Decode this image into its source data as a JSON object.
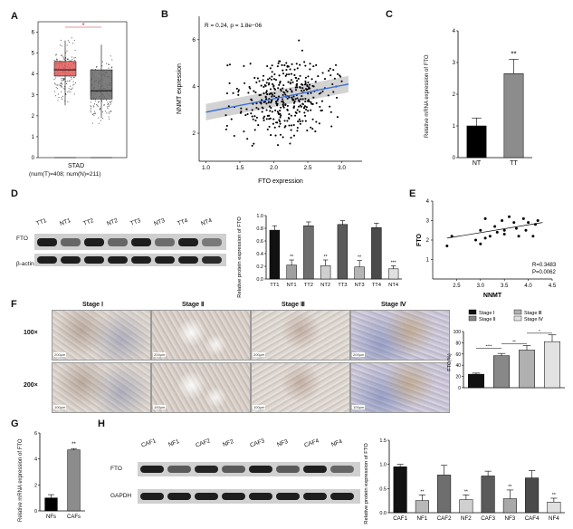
{
  "panels": {
    "A": {
      "letter": "A",
      "xlabel": "STAD",
      "sublabel": "(num(T)=408; num(N)=211)",
      "star": "*",
      "yticks": [
        "0",
        "1",
        "2",
        "3",
        "4",
        "5",
        "6"
      ]
    },
    "B": {
      "letter": "B",
      "stat": "R = 0.24, p = 1.8e−06",
      "xlabel": "FTO expression",
      "ylabel": "NNMT expression",
      "xticks": [
        "1.0",
        "1.5",
        "2.0",
        "2.5",
        "3.0"
      ],
      "yticks": [
        "2",
        "4",
        "6"
      ]
    },
    "C": {
      "letter": "C",
      "ylabel": "Relative mRNA  expression of FTO",
      "sig": "**",
      "categories": [
        "NT",
        "TT"
      ],
      "yticks": [
        "0",
        "1",
        "2",
        "3",
        "4"
      ]
    },
    "D": {
      "letter": "D",
      "lanes": [
        "TT1",
        "NT1",
        "TT2",
        "NT2",
        "TT3",
        "NT3",
        "TT4",
        "NT4"
      ],
      "row_labels": [
        "FTO",
        "β-actin"
      ],
      "ylabel": "Relative protein expression of FTO",
      "yticks": [
        "0.0",
        "0.2",
        "0.4",
        "0.6",
        "0.8",
        "1.0"
      ],
      "sig": [
        "",
        "**",
        "",
        "**",
        "",
        "**",
        "",
        "***"
      ]
    },
    "E": {
      "letter": "E",
      "xlabel": "NNMT",
      "ylabel": "FTO",
      "stat_r": "R=0.3483",
      "stat_p": "P=0.0062",
      "xticks": [
        "2.5",
        "3.0",
        "3.5",
        "4.0",
        "4.5"
      ],
      "yticks": [
        "1",
        "2",
        "3",
        "4"
      ]
    },
    "F": {
      "letter": "F",
      "stages": [
        "Stage Ⅰ",
        "Stage Ⅱ",
        "Stage Ⅲ",
        "Stage Ⅳ"
      ],
      "mags": [
        "100×",
        "200×"
      ],
      "scale_100": "200μm",
      "scale_200": "100μm",
      "legend": [
        "Stage Ⅰ",
        "Stage Ⅱ",
        "Stage Ⅲ",
        "Stage Ⅳ"
      ],
      "ylabel": "FTO(%)",
      "yticks": [
        "0",
        "20",
        "40",
        "60",
        "80",
        "100"
      ],
      "sig": [
        "****",
        "**",
        "*"
      ]
    },
    "G": {
      "letter": "G",
      "ylabel": "Relative mRNA expression of FTO",
      "categories": [
        "NFs",
        "CAFs"
      ],
      "sig": "**",
      "yticks": [
        "0",
        "2",
        "4",
        "6"
      ]
    },
    "H": {
      "letter": "H",
      "lanes": [
        "CAF1",
        "NF1",
        "CAF2",
        "NF2",
        "CAF3",
        "NF3",
        "CAF4",
        "NF4"
      ],
      "row_labels": [
        "FTO",
        "GAPDH"
      ],
      "ylabel": "Relative protein expression of FTO",
      "yticks": [
        "0.0",
        "0.5",
        "1.0",
        "1.5"
      ],
      "sig": [
        "",
        "**",
        "",
        "**",
        "",
        "**",
        "",
        "**"
      ]
    }
  },
  "colors": {
    "tumor_box": "#e05a5a",
    "normal_box": "#666666",
    "regression": "#3a6fd8",
    "ci_band": "#c8c8c8"
  },
  "chart_data": [
    {
      "id": "A",
      "type": "box",
      "categories": [
        "T",
        "N"
      ],
      "series": [
        {
          "name": "T",
          "q1": 3.9,
          "median": 4.2,
          "q3": 4.6,
          "whisker_low": 2.5,
          "whisker_high": 5.6
        },
        {
          "name": "N",
          "q1": 2.8,
          "median": 3.2,
          "q3": 4.2,
          "whisker_low": 1.9,
          "whisker_high": 5.4
        }
      ],
      "ylim": [
        0,
        6.5
      ]
    },
    {
      "id": "B",
      "type": "scatter",
      "xlabel": "FTO expression",
      "ylabel": "NNMT expression",
      "xlim": [
        0.9,
        3.3
      ],
      "ylim": [
        0.8,
        7
      ],
      "fit": {
        "x": [
          1.0,
          3.1
        ],
        "y": [
          2.9,
          4.1
        ]
      }
    },
    {
      "id": "C",
      "type": "bar",
      "categories": [
        "NT",
        "TT"
      ],
      "values": [
        1.0,
        2.65
      ],
      "errors": [
        0.25,
        0.45
      ],
      "ylim": [
        0,
        4
      ]
    },
    {
      "id": "D",
      "type": "bar",
      "categories": [
        "TT1",
        "NT1",
        "TT2",
        "NT2",
        "TT3",
        "NT3",
        "TT4",
        "NT4"
      ],
      "values": [
        0.77,
        0.22,
        0.84,
        0.21,
        0.86,
        0.19,
        0.81,
        0.16
      ],
      "errors": [
        0.07,
        0.08,
        0.06,
        0.09,
        0.06,
        0.1,
        0.07,
        0.05
      ],
      "ylim": [
        0,
        1.0
      ]
    },
    {
      "id": "E",
      "type": "scatter",
      "xlabel": "NNMT",
      "ylabel": "FTO",
      "xlim": [
        2.0,
        4.5
      ],
      "ylim": [
        0,
        4
      ],
      "points": [
        [
          2.3,
          1.7
        ],
        [
          2.4,
          2.2
        ],
        [
          2.9,
          2.0
        ],
        [
          3.0,
          1.8
        ],
        [
          3.0,
          2.5
        ],
        [
          3.1,
          3.1
        ],
        [
          3.1,
          2.1
        ],
        [
          3.2,
          2.2
        ],
        [
          3.3,
          2.7
        ],
        [
          3.35,
          2.4
        ],
        [
          3.45,
          3.0
        ],
        [
          3.5,
          2.5
        ],
        [
          3.5,
          2.3
        ],
        [
          3.6,
          3.2
        ],
        [
          3.7,
          2.9
        ],
        [
          3.75,
          2.6
        ],
        [
          3.8,
          2.2
        ],
        [
          3.9,
          3.1
        ],
        [
          3.95,
          2.5
        ],
        [
          4.0,
          2.9
        ],
        [
          4.1,
          2.2
        ],
        [
          4.15,
          2.8
        ],
        [
          4.2,
          3.0
        ]
      ],
      "fit": {
        "x": [
          2.3,
          4.3
        ],
        "y": [
          2.1,
          2.9
        ]
      }
    },
    {
      "id": "F",
      "type": "bar",
      "categories": [
        "Stage Ⅰ",
        "Stage Ⅱ",
        "Stage Ⅲ",
        "Stage Ⅳ"
      ],
      "values": [
        24,
        57,
        67,
        82
      ],
      "errors": [
        2,
        4,
        8,
        12
      ],
      "ylim": [
        0,
        100
      ]
    },
    {
      "id": "G",
      "type": "bar",
      "categories": [
        "NFs",
        "CAFs"
      ],
      "values": [
        1.0,
        4.7
      ],
      "errors": [
        0.25,
        0.1
      ],
      "ylim": [
        0,
        6
      ]
    },
    {
      "id": "H",
      "type": "bar",
      "categories": [
        "CAF1",
        "NF1",
        "CAF2",
        "NF2",
        "CAF3",
        "NF3",
        "CAF4",
        "NF4"
      ],
      "values": [
        0.95,
        0.25,
        0.78,
        0.27,
        0.76,
        0.29,
        0.72,
        0.22
      ],
      "errors": [
        0.05,
        0.12,
        0.2,
        0.1,
        0.1,
        0.18,
        0.15,
        0.08
      ],
      "ylim": [
        0,
        1.5
      ]
    }
  ]
}
